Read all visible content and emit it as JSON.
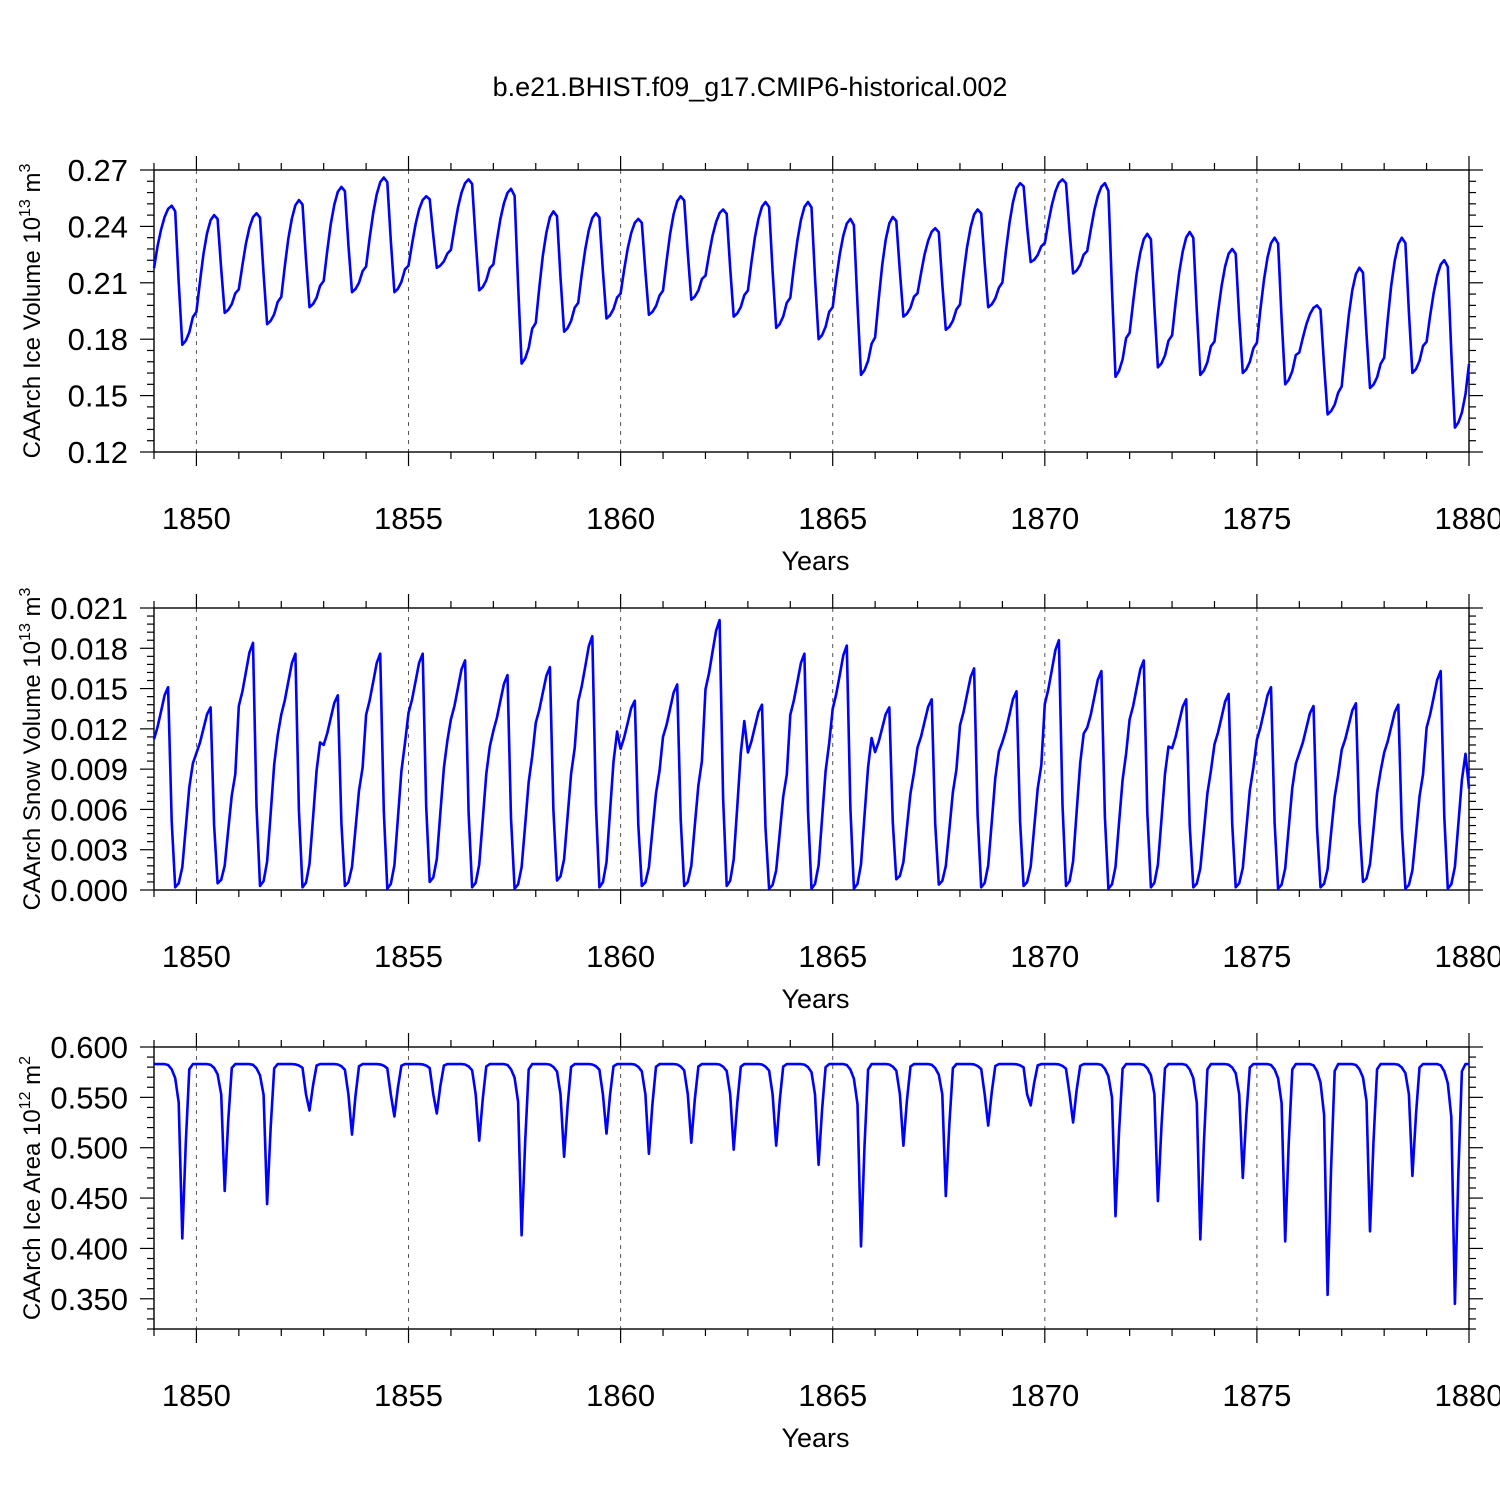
{
  "title": "b.e21.BHIST.f09_g17.CMIP6-historical.002",
  "chart_data": [
    {
      "type": "line",
      "ylabel": "CAArch Ice Volume 10",
      "ylabel_exp": "13",
      "ylabel_unit": " m",
      "ylabel_unit_exp": "3",
      "xlabel": "Years",
      "xlim": [
        1849.0,
        1880.0
      ],
      "ylim": [
        0.12,
        0.27
      ],
      "xticks": [
        1850,
        1855,
        1860,
        1865,
        1870,
        1875,
        1880
      ],
      "yticks": [
        0.12,
        0.15,
        0.18,
        0.21,
        0.24,
        0.27
      ],
      "ytick_labels": [
        "0.12",
        "0.15",
        "0.18",
        "0.21",
        "0.24",
        "0.27"
      ],
      "grid": "vertical dashed at major x ticks",
      "series": [
        {
          "name": "CAArch Ice Volume",
          "color": "#0000ff",
          "annual_max": [
            0.251,
            0.246,
            0.247,
            0.254,
            0.261,
            0.266,
            0.256,
            0.265,
            0.26,
            0.248,
            0.247,
            0.244,
            0.256,
            0.249,
            0.253,
            0.253,
            0.244,
            0.245,
            0.239,
            0.249,
            0.263,
            0.265,
            0.263,
            0.236,
            0.237,
            0.228,
            0.234,
            0.198,
            0.218,
            0.234,
            0.222
          ],
          "annual_min": [
            0.177,
            0.194,
            0.188,
            0.197,
            0.205,
            0.205,
            0.218,
            0.206,
            0.167,
            0.184,
            0.191,
            0.193,
            0.201,
            0.192,
            0.186,
            0.18,
            0.161,
            0.192,
            0.185,
            0.197,
            0.221,
            0.215,
            0.16,
            0.165,
            0.161,
            0.162,
            0.156,
            0.14,
            0.154,
            0.162,
            0.133
          ]
        }
      ]
    },
    {
      "type": "line",
      "ylabel": "CAArch Snow Volume 10",
      "ylabel_exp": "13",
      "ylabel_unit": " m",
      "ylabel_unit_exp": "3",
      "xlabel": "Years",
      "xlim": [
        1849.0,
        1880.0
      ],
      "ylim": [
        0.0,
        0.021
      ],
      "xticks": [
        1850,
        1855,
        1860,
        1865,
        1870,
        1875,
        1880
      ],
      "yticks": [
        0.0,
        0.003,
        0.006,
        0.009,
        0.012,
        0.015,
        0.018,
        0.021
      ],
      "ytick_labels": [
        "0.000",
        "0.003",
        "0.006",
        "0.009",
        "0.012",
        "0.015",
        "0.018",
        "0.021"
      ],
      "grid": "vertical dashed at major x ticks",
      "series": [
        {
          "name": "CAArch Snow Volume",
          "color": "#0000ff",
          "annual_max": [
            0.0151,
            0.0136,
            0.0184,
            0.0176,
            0.0145,
            0.0176,
            0.0176,
            0.0171,
            0.016,
            0.0166,
            0.0189,
            0.0141,
            0.0153,
            0.0201,
            0.0138,
            0.0176,
            0.0182,
            0.0136,
            0.0142,
            0.0165,
            0.0148,
            0.0186,
            0.0163,
            0.0171,
            0.0142,
            0.0146,
            0.0151,
            0.0137,
            0.0139,
            0.0138,
            0.0163
          ],
          "annual_min": [
            0.0002,
            0.0005,
            0.0003,
            0.0002,
            0.0003,
            0.0001,
            0.0006,
            0.0002,
            0.0001,
            0.0007,
            0.0002,
            0.0003,
            0.0003,
            0.0003,
            0.0001,
            0.0001,
            0.0001,
            0.0008,
            0.0004,
            0.0002,
            0.0003,
            0.0003,
            0.0001,
            0.0002,
            0.0002,
            0.0002,
            0.0001,
            0.0002,
            0.0006,
            0.0001,
            0.0001
          ]
        }
      ]
    },
    {
      "type": "line",
      "ylabel": "CAArch Ice Area 10",
      "ylabel_exp": "12",
      "ylabel_unit": " m",
      "ylabel_unit_exp": "2",
      "xlabel": "Years",
      "xlim": [
        1849.0,
        1880.0
      ],
      "ylim": [
        0.32,
        0.6
      ],
      "xticks": [
        1850,
        1855,
        1860,
        1865,
        1870,
        1875,
        1880
      ],
      "yticks": [
        0.35,
        0.4,
        0.45,
        0.5,
        0.55,
        0.6
      ],
      "ytick_labels": [
        "0.350",
        "0.400",
        "0.450",
        "0.500",
        "0.550",
        "0.600"
      ],
      "grid": "vertical dashed at major x ticks",
      "series": [
        {
          "name": "CAArch Ice Area",
          "color": "#0000ff",
          "plateau": 0.583,
          "annual_min": [
            0.41,
            0.457,
            0.444,
            0.537,
            0.513,
            0.531,
            0.534,
            0.507,
            0.413,
            0.491,
            0.514,
            0.494,
            0.505,
            0.498,
            0.502,
            0.483,
            0.402,
            0.502,
            0.452,
            0.522,
            0.542,
            0.525,
            0.432,
            0.447,
            0.409,
            0.47,
            0.407,
            0.354,
            0.417,
            0.472,
            0.345
          ]
        }
      ]
    }
  ]
}
